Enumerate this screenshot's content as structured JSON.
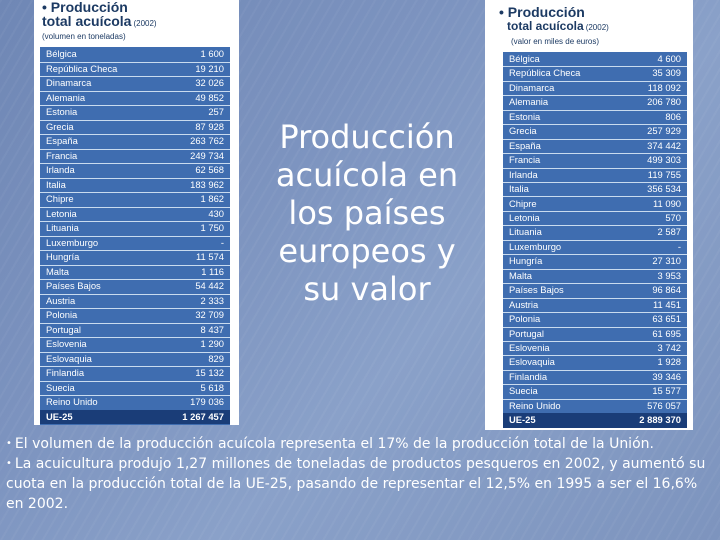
{
  "slide": {
    "title": "Producción acuícola en los países europeos y su valor",
    "bullets": [
      "El volumen de la producción acuícola representa el 17% de la producción total de la Unión.",
      "La acuicultura produjo 1,27 millones de toneladas de productos pesqueros en 2002, y aumentó su cuota en la producción total de la UE-25, pasando de representar el 12,5% en 1995 a ser el 16,6% en 2002."
    ],
    "bullet_symbol": "•"
  },
  "left_table": {
    "title_line1": "• Producción",
    "title_line2": "total acuícola",
    "year": "(2002)",
    "subtitle": "(volumen en toneladas)",
    "rows": [
      {
        "country": "Bélgica",
        "value": "1 600"
      },
      {
        "country": "República Checa",
        "value": "19 210"
      },
      {
        "country": "Dinamarca",
        "value": "32 026"
      },
      {
        "country": "Alemania",
        "value": "49 852"
      },
      {
        "country": "Estonia",
        "value": "257"
      },
      {
        "country": "Grecia",
        "value": "87 928"
      },
      {
        "country": "España",
        "value": "263 762"
      },
      {
        "country": "Francia",
        "value": "249 734"
      },
      {
        "country": "Irlanda",
        "value": "62 568"
      },
      {
        "country": "Italia",
        "value": "183 962"
      },
      {
        "country": "Chipre",
        "value": "1 862"
      },
      {
        "country": "Letonia",
        "value": "430"
      },
      {
        "country": "Lituania",
        "value": "1 750"
      },
      {
        "country": "Luxemburgo",
        "value": "-"
      },
      {
        "country": "Hungría",
        "value": "11 574"
      },
      {
        "country": "Malta",
        "value": "1 116"
      },
      {
        "country": "Países Bajos",
        "value": "54 442"
      },
      {
        "country": "Austria",
        "value": "2 333"
      },
      {
        "country": "Polonia",
        "value": "32 709"
      },
      {
        "country": "Portugal",
        "value": "8 437"
      },
      {
        "country": "Eslovenia",
        "value": "1 290"
      },
      {
        "country": "Eslovaquia",
        "value": "829"
      },
      {
        "country": "Finlandia",
        "value": "15 132"
      },
      {
        "country": "Suecia",
        "value": "5 618"
      },
      {
        "country": "Reino Unido",
        "value": "179 036"
      }
    ],
    "total": {
      "country": "UE-25",
      "value": "1 267 457"
    }
  },
  "right_table": {
    "title_line1": "• Producción",
    "title_line2": "total acuícola",
    "year": "(2002)",
    "subtitle": "(valor en miles de euros)",
    "rows": [
      {
        "country": "Bélgica",
        "value": "4 600"
      },
      {
        "country": "República Checa",
        "value": "35 309"
      },
      {
        "country": "Dinamarca",
        "value": "118 092"
      },
      {
        "country": "Alemania",
        "value": "206 780"
      },
      {
        "country": "Estonia",
        "value": "806"
      },
      {
        "country": "Grecia",
        "value": "257 929"
      },
      {
        "country": "España",
        "value": "374 442"
      },
      {
        "country": "Francia",
        "value": "499 303"
      },
      {
        "country": "Irlanda",
        "value": "119 755"
      },
      {
        "country": "Italia",
        "value": "356 534"
      },
      {
        "country": "Chipre",
        "value": "11 090"
      },
      {
        "country": "Letonia",
        "value": "570"
      },
      {
        "country": "Lituania",
        "value": "2 587"
      },
      {
        "country": "Luxemburgo",
        "value": "-"
      },
      {
        "country": "Hungría",
        "value": "27 310"
      },
      {
        "country": "Malta",
        "value": "3 953"
      },
      {
        "country": "Países Bajos",
        "value": "96 864"
      },
      {
        "country": "Austria",
        "value": "11 451"
      },
      {
        "country": "Polonia",
        "value": "63 651"
      },
      {
        "country": "Portugal",
        "value": "61 695"
      },
      {
        "country": "Eslovenia",
        "value": "3 742"
      },
      {
        "country": "Eslovaquia",
        "value": "1 928"
      },
      {
        "country": "Finlandia",
        "value": "39 346"
      },
      {
        "country": "Suecia",
        "value": "15 577"
      },
      {
        "country": "Reino Unido",
        "value": "576 057"
      }
    ],
    "total": {
      "country": "UE-25",
      "value": "2 889 370"
    }
  }
}
